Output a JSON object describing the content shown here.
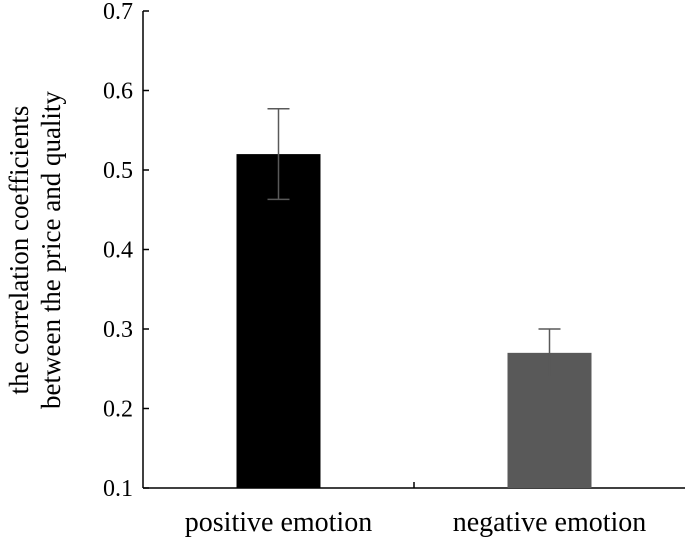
{
  "chart_data": {
    "type": "bar",
    "categories": [
      "positive emotion",
      "negative emotion"
    ],
    "values": [
      0.52,
      0.27
    ],
    "errors": [
      0.057,
      0.03
    ],
    "bar_colors": [
      "#000000",
      "#595959"
    ],
    "ylabel_lines": [
      "the correlation coefficients",
      "between the price and quality"
    ],
    "xlabel": "",
    "title": "",
    "ylim": [
      0.1,
      0.7
    ],
    "yticks": [
      "0.1",
      "0.2",
      "0.3",
      "0.4",
      "0.5",
      "0.6",
      "0.7"
    ],
    "grid": false,
    "legend": "none"
  }
}
